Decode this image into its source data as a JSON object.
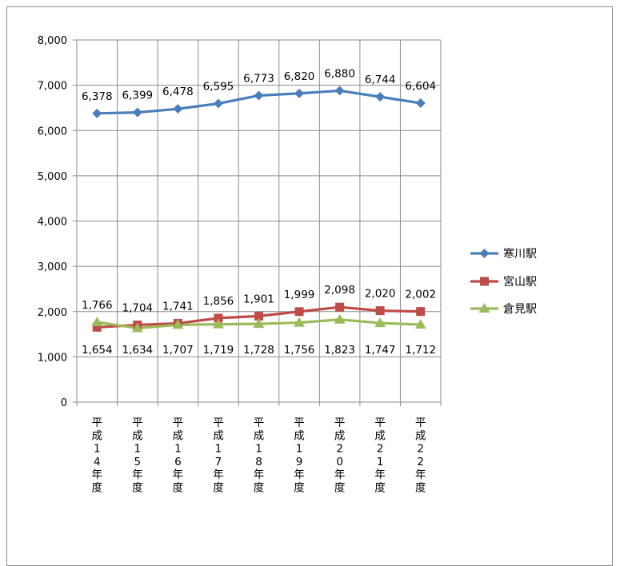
{
  "chart_data": {
    "type": "line",
    "categories": [
      "平成14年度",
      "平成15年度",
      "平成16年度",
      "平成17年度",
      "平成18年度",
      "平成19年度",
      "平成20年度",
      "平成21年度",
      "平成22年度"
    ],
    "category_lines": [
      [
        "平",
        "成",
        "1",
        "4",
        "年",
        "度"
      ],
      [
        "平",
        "成",
        "1",
        "5",
        "年",
        "度"
      ],
      [
        "平",
        "成",
        "1",
        "6",
        "年",
        "度"
      ],
      [
        "平",
        "成",
        "1",
        "7",
        "年",
        "度"
      ],
      [
        "平",
        "成",
        "1",
        "8",
        "年",
        "度"
      ],
      [
        "平",
        "成",
        "1",
        "9",
        "年",
        "度"
      ],
      [
        "平",
        "成",
        "2",
        "0",
        "年",
        "度"
      ],
      [
        "平",
        "成",
        "2",
        "1",
        "年",
        "度"
      ],
      [
        "平",
        "成",
        "2",
        "2",
        "年",
        "度"
      ]
    ],
    "ylim": [
      0,
      8000
    ],
    "yticks": [
      0,
      1000,
      2000,
      3000,
      4000,
      5000,
      6000,
      7000,
      8000
    ],
    "ytick_labels": [
      "0",
      "1,000",
      "2,000",
      "3,000",
      "4,000",
      "5,000",
      "6,000",
      "7,000",
      "8,000"
    ],
    "grid": true,
    "legend_position": "right",
    "series": [
      {
        "name": "寒川駅",
        "color": "#4a7ebb",
        "marker": "diamond",
        "values": [
          6378,
          6399,
          6478,
          6595,
          6773,
          6820,
          6880,
          6744,
          6604
        ],
        "labels": [
          "6,378",
          "6,399",
          "6,478",
          "6,595",
          "6,773",
          "6,820",
          "6,880",
          "6,744",
          "6,604"
        ],
        "label_side": "above"
      },
      {
        "name": "宮山駅",
        "color": "#be4b48",
        "marker": "square",
        "values": [
          1654,
          1704,
          1741,
          1856,
          1901,
          1999,
          2098,
          2020,
          2002
        ],
        "labels": [
          "1,654",
          "1,704",
          "1,741",
          "1,856",
          "1,901",
          "1,999",
          "2,098",
          "2,020",
          "2,002"
        ],
        "label_side": "mixed"
      },
      {
        "name": "倉見駅",
        "color": "#9bbb59",
        "marker": "triangle",
        "values": [
          1766,
          1634,
          1707,
          1719,
          1728,
          1756,
          1823,
          1747,
          1712
        ],
        "labels": [
          "1,766",
          "1,634",
          "1,707",
          "1,719",
          "1,728",
          "1,756",
          "1,823",
          "1,747",
          "1,712"
        ],
        "label_side": "mixed"
      }
    ]
  }
}
